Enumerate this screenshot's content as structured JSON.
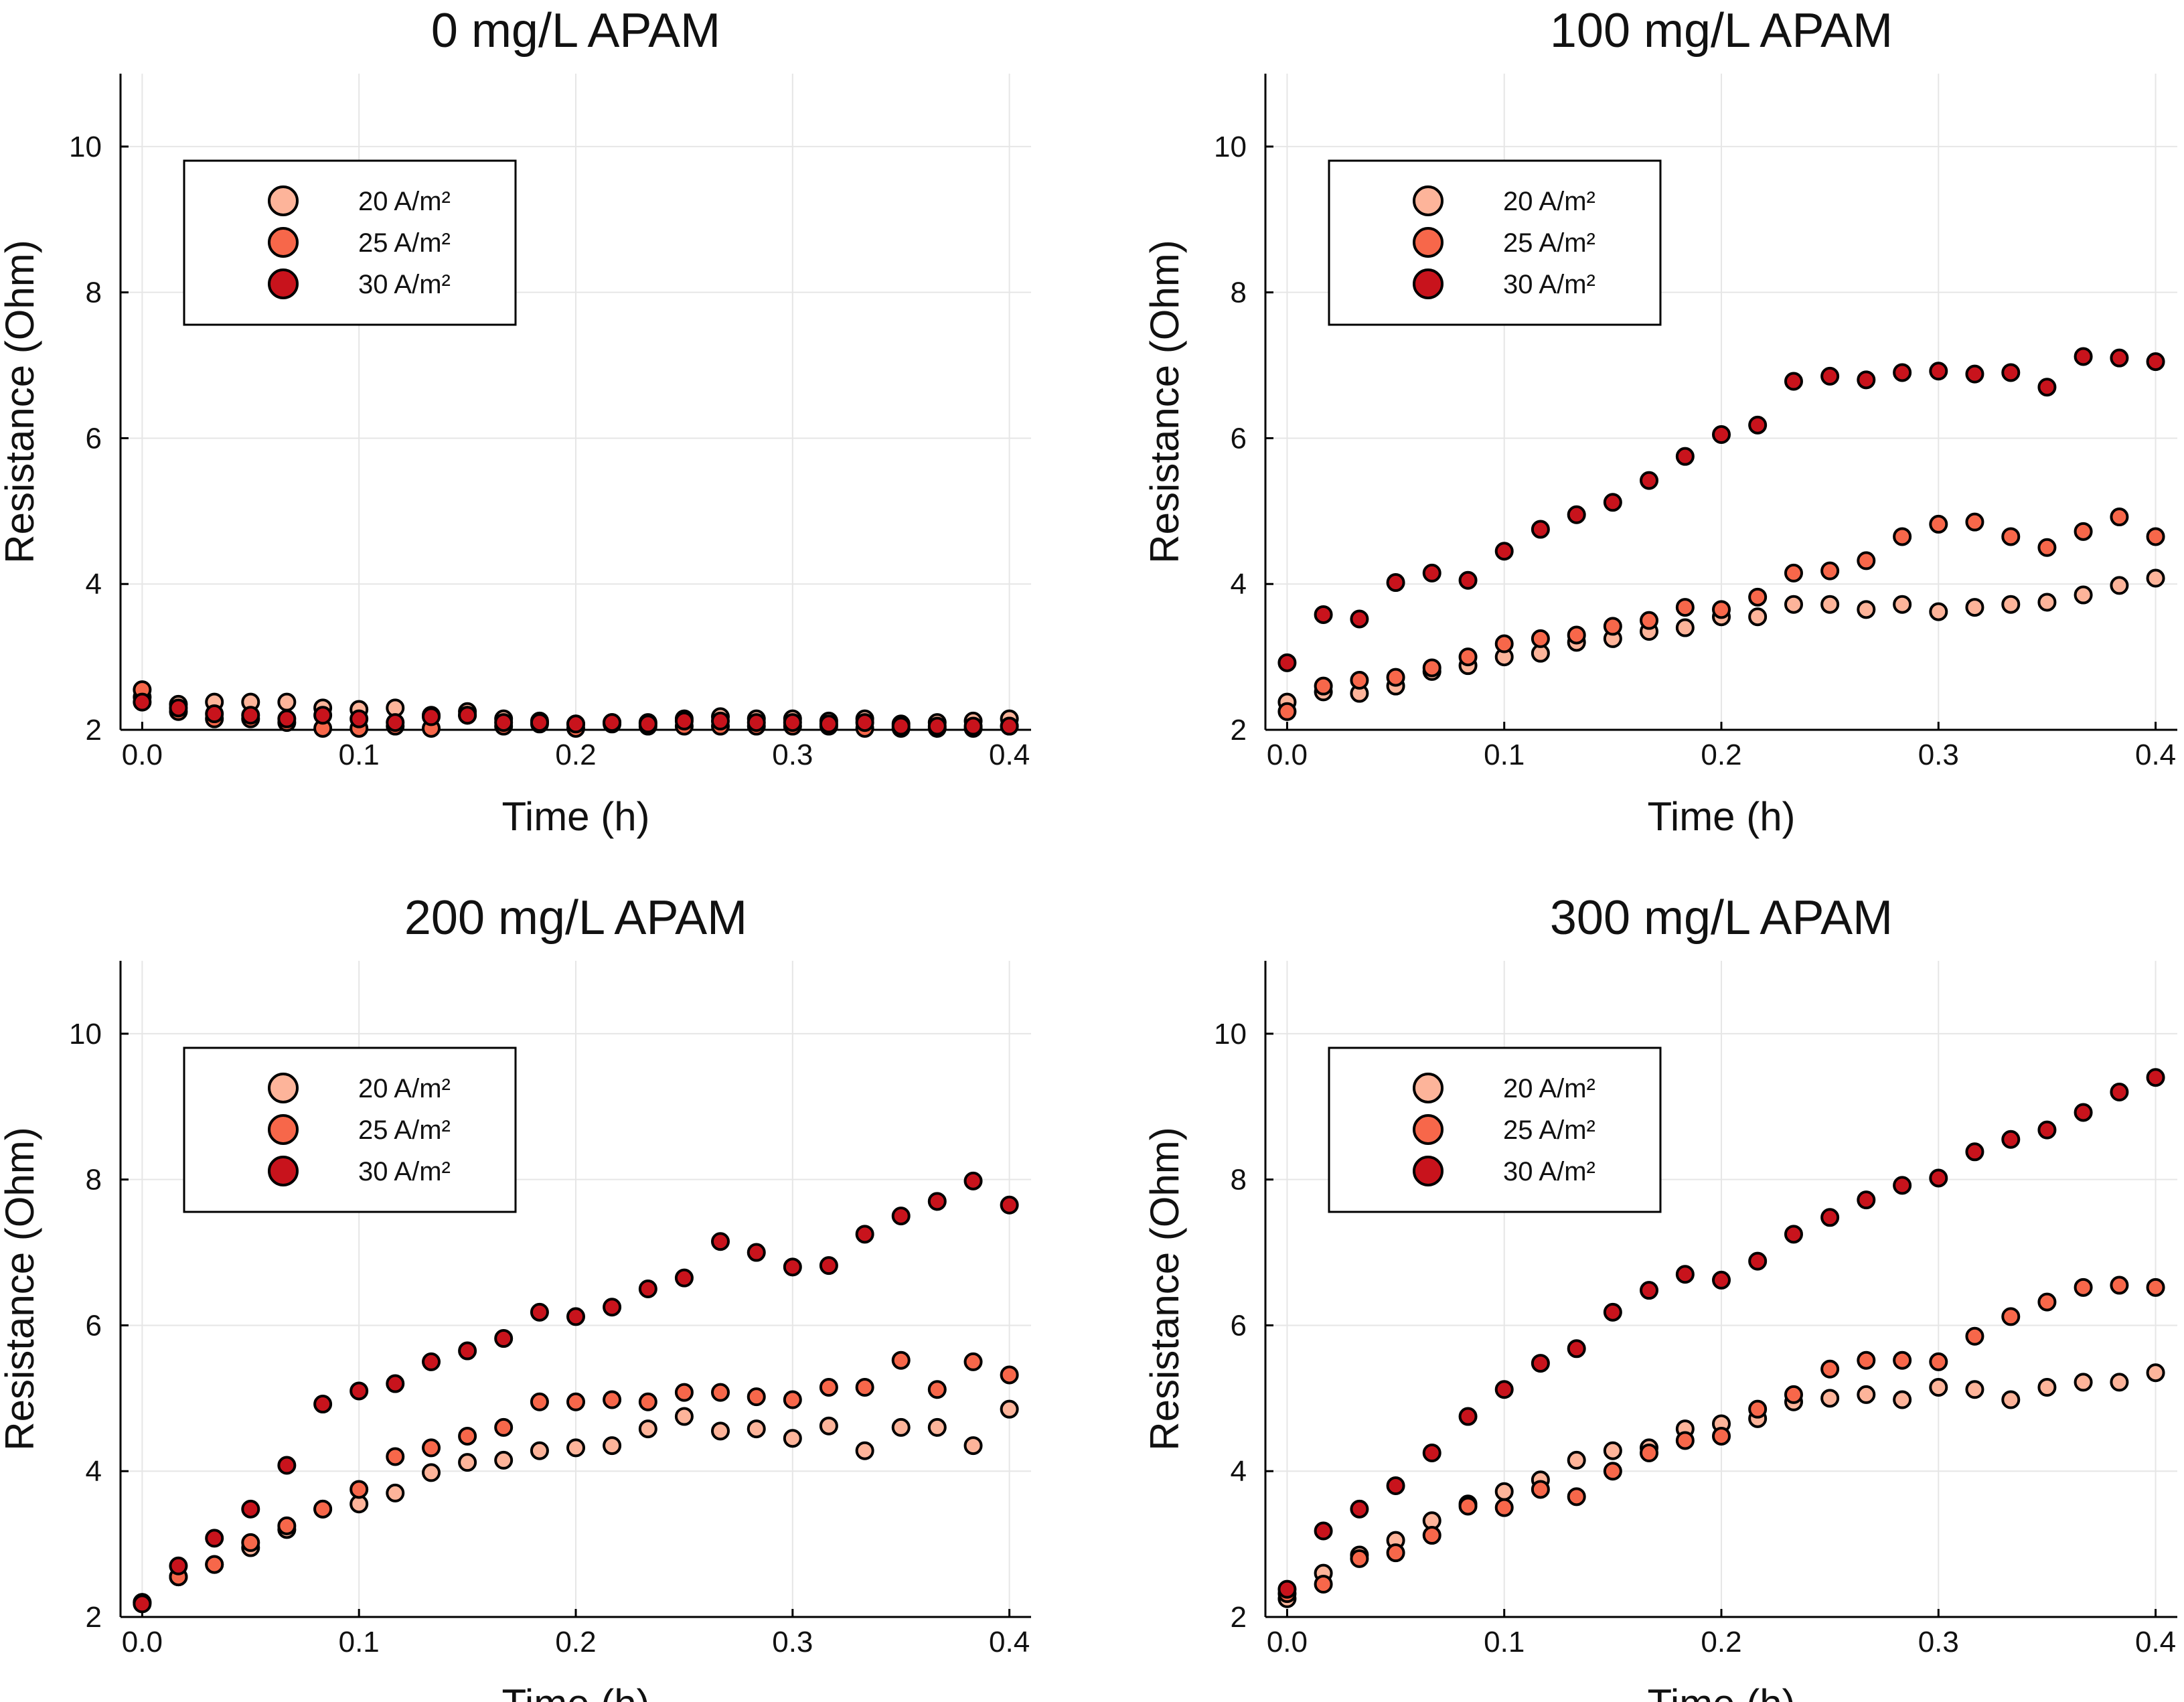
{
  "figure": {
    "layout": "2x2 grid of scatter plots"
  },
  "colors": {
    "c20": "#FDB49A",
    "c25": "#F7674A",
    "c30": "#C8131C"
  },
  "chart_data": [
    {
      "type": "scatter",
      "title": "0 mg/L APAM",
      "xlabel": "Time (h)",
      "ylabel": "Resistance (Ohm)",
      "xlim": [
        -0.01,
        0.41
      ],
      "ylim": [
        2,
        11
      ],
      "xticks": [
        "0.0",
        "0.1",
        "0.2",
        "0.3",
        "0.4"
      ],
      "yticks": [
        "2",
        "4",
        "6",
        "8",
        "10"
      ],
      "legend": [
        "20 A/m²",
        "25 A/m²",
        "30 A/m²"
      ],
      "legend_position": "top-left",
      "x": [
        0,
        0.0167,
        0.0333,
        0.05,
        0.0667,
        0.0833,
        0.1,
        0.1167,
        0.1333,
        0.15,
        0.1667,
        0.1833,
        0.2,
        0.2167,
        0.2333,
        0.25,
        0.2667,
        0.2833,
        0.3,
        0.3167,
        0.3333,
        0.35,
        0.3667,
        0.3833,
        0.4
      ],
      "series": [
        {
          "name": "20 A/m²",
          "color": "#FDB49A",
          "values": [
            2.45,
            2.35,
            2.38,
            2.38,
            2.38,
            2.3,
            2.28,
            2.3,
            2.2,
            2.25,
            2.15,
            2.12,
            2.08,
            2.1,
            2.1,
            2.15,
            2.18,
            2.15,
            2.15,
            2.12,
            2.15,
            2.08,
            2.1,
            2.12,
            2.15
          ]
        },
        {
          "name": "25 A/m²",
          "color": "#F7674A",
          "values": [
            2.55,
            2.25,
            2.15,
            2.15,
            2.1,
            2.02,
            2.02,
            2.05,
            2.02,
            2.2,
            2.05,
            2.08,
            2.02,
            2.08,
            2.05,
            2.05,
            2.05,
            2.05,
            2.05,
            2.05,
            2.02,
            2.02,
            2.02,
            2.02,
            2.05
          ]
        },
        {
          "name": "30 A/m²",
          "color": "#C8131C",
          "values": [
            2.38,
            2.3,
            2.22,
            2.2,
            2.15,
            2.2,
            2.15,
            2.1,
            2.18,
            2.2,
            2.1,
            2.1,
            2.08,
            2.1,
            2.08,
            2.12,
            2.12,
            2.1,
            2.1,
            2.08,
            2.1,
            2.05,
            2.05,
            2.05,
            2.05
          ]
        }
      ]
    },
    {
      "type": "scatter",
      "title": "100 mg/L APAM",
      "xlabel": "Time (h)",
      "ylabel": "Resistance (Ohm)",
      "xlim": [
        -0.01,
        0.41
      ],
      "ylim": [
        2,
        11
      ],
      "xticks": [
        "0.0",
        "0.1",
        "0.2",
        "0.3",
        "0.4"
      ],
      "yticks": [
        "2",
        "4",
        "6",
        "8",
        "10"
      ],
      "legend": [
        "20 A/m²",
        "25 A/m²",
        "30 A/m²"
      ],
      "legend_position": "top-left",
      "x": [
        0,
        0.0167,
        0.0333,
        0.05,
        0.0667,
        0.0833,
        0.1,
        0.1167,
        0.1333,
        0.15,
        0.1667,
        0.1833,
        0.2,
        0.2167,
        0.2333,
        0.25,
        0.2667,
        0.2833,
        0.3,
        0.3167,
        0.3333,
        0.35,
        0.3667,
        0.3833,
        0.4
      ],
      "series": [
        {
          "name": "20 A/m²",
          "color": "#FDB49A",
          "values": [
            2.38,
            2.52,
            2.5,
            2.6,
            2.8,
            2.88,
            3.0,
            3.05,
            3.2,
            3.25,
            3.35,
            3.4,
            3.55,
            3.55,
            3.72,
            3.72,
            3.65,
            3.72,
            3.62,
            3.68,
            3.72,
            3.75,
            3.85,
            3.98,
            4.08
          ]
        },
        {
          "name": "25 A/m²",
          "color": "#F7674A",
          "values": [
            2.25,
            2.6,
            2.68,
            2.72,
            2.85,
            3.0,
            3.18,
            3.25,
            3.3,
            3.42,
            3.5,
            3.68,
            3.65,
            3.82,
            4.15,
            4.18,
            4.32,
            4.65,
            4.82,
            4.85,
            4.65,
            4.5,
            4.72,
            4.92,
            4.65
          ]
        },
        {
          "name": "30 A/m²",
          "color": "#C8131C",
          "values": [
            2.92,
            3.58,
            3.52,
            4.02,
            4.15,
            4.05,
            4.45,
            4.75,
            4.95,
            5.12,
            5.42,
            5.75,
            6.05,
            6.18,
            6.78,
            6.85,
            6.8,
            6.9,
            6.92,
            6.88,
            6.9,
            6.7,
            7.12,
            7.1,
            7.05
          ]
        }
      ]
    },
    {
      "type": "scatter",
      "title": "200 mg/L APAM",
      "xlabel": "Time (h)",
      "ylabel": "Resistance (Ohm)",
      "xlim": [
        -0.01,
        0.41
      ],
      "ylim": [
        2,
        11
      ],
      "xticks": [
        "0.0",
        "0.1",
        "0.2",
        "0.3",
        "0.4"
      ],
      "yticks": [
        "2",
        "4",
        "6",
        "8",
        "10"
      ],
      "legend": [
        "20 A/m²",
        "25 A/m²",
        "30 A/m²"
      ],
      "legend_position": "top-left",
      "x": [
        0,
        0.0167,
        0.0333,
        0.05,
        0.0667,
        0.0833,
        0.1,
        0.1167,
        0.1333,
        0.15,
        0.1667,
        0.1833,
        0.2,
        0.2167,
        0.2333,
        0.25,
        0.2667,
        0.2833,
        0.3,
        0.3167,
        0.3333,
        0.35,
        0.3667,
        0.3833,
        0.4
      ],
      "series": [
        {
          "name": "20 A/m²",
          "color": "#FDB49A",
          "values": [
            2.2,
            2.55,
            2.72,
            2.95,
            3.2,
            3.48,
            3.55,
            3.7,
            3.98,
            4.12,
            4.15,
            4.28,
            4.32,
            4.35,
            4.58,
            4.75,
            4.55,
            4.58,
            4.45,
            4.62,
            4.28,
            4.6,
            4.6,
            4.35,
            4.85
          ]
        },
        {
          "name": "25 A/m²",
          "color": "#F7674A",
          "values": [
            2.2,
            2.55,
            2.72,
            3.02,
            3.25,
            3.48,
            3.75,
            4.2,
            4.32,
            4.48,
            4.6,
            4.95,
            4.95,
            4.98,
            4.95,
            5.08,
            5.08,
            5.02,
            4.98,
            5.15,
            5.15,
            5.52,
            5.12,
            5.5,
            5.32
          ]
        },
        {
          "name": "30 A/m²",
          "color": "#C8131C",
          "values": [
            2.18,
            2.7,
            3.08,
            3.48,
            4.08,
            4.92,
            5.1,
            5.2,
            5.5,
            5.65,
            5.82,
            6.18,
            6.12,
            6.25,
            6.5,
            6.65,
            7.15,
            7.0,
            6.8,
            6.82,
            7.25,
            7.5,
            7.7,
            7.98,
            7.65
          ]
        }
      ]
    },
    {
      "type": "scatter",
      "title": "300 mg/L APAM",
      "xlabel": "Time (h)",
      "ylabel": "Resistance (Ohm)",
      "xlim": [
        -0.01,
        0.41
      ],
      "ylim": [
        2,
        11
      ],
      "xticks": [
        "0.0",
        "0.1",
        "0.2",
        "0.3",
        "0.4"
      ],
      "yticks": [
        "2",
        "4",
        "6",
        "8",
        "10"
      ],
      "legend": [
        "20 A/m²",
        "25 A/m²",
        "30 A/m²"
      ],
      "legend_position": "top-left",
      "x": [
        0,
        0.0167,
        0.0333,
        0.05,
        0.0667,
        0.0833,
        0.1,
        0.1167,
        0.1333,
        0.15,
        0.1667,
        0.1833,
        0.2,
        0.2167,
        0.2333,
        0.25,
        0.2667,
        0.2833,
        0.3,
        0.3167,
        0.3333,
        0.35,
        0.3667,
        0.3833,
        0.4
      ],
      "series": [
        {
          "name": "20 A/m²",
          "color": "#FDB49A",
          "values": [
            2.25,
            2.6,
            2.85,
            3.05,
            3.32,
            3.55,
            3.72,
            3.88,
            4.15,
            4.28,
            4.32,
            4.58,
            4.65,
            4.72,
            4.95,
            5.0,
            5.05,
            4.98,
            5.15,
            5.12,
            4.98,
            5.15,
            5.22,
            5.22,
            5.35
          ]
        },
        {
          "name": "25 A/m²",
          "color": "#F7674A",
          "values": [
            2.32,
            2.45,
            2.8,
            2.88,
            3.12,
            3.52,
            3.5,
            3.75,
            3.65,
            4.0,
            4.25,
            4.42,
            4.48,
            4.85,
            5.05,
            5.4,
            5.52,
            5.52,
            5.5,
            5.85,
            6.12,
            6.32,
            6.52,
            6.55,
            6.52
          ]
        },
        {
          "name": "30 A/m²",
          "color": "#C8131C",
          "values": [
            2.38,
            3.18,
            3.48,
            3.8,
            4.25,
            4.75,
            5.12,
            5.48,
            5.68,
            6.18,
            6.48,
            6.7,
            6.62,
            6.88,
            7.25,
            7.48,
            7.72,
            7.92,
            8.02,
            8.38,
            8.55,
            8.68,
            8.92,
            9.2,
            9.4
          ]
        }
      ]
    }
  ]
}
